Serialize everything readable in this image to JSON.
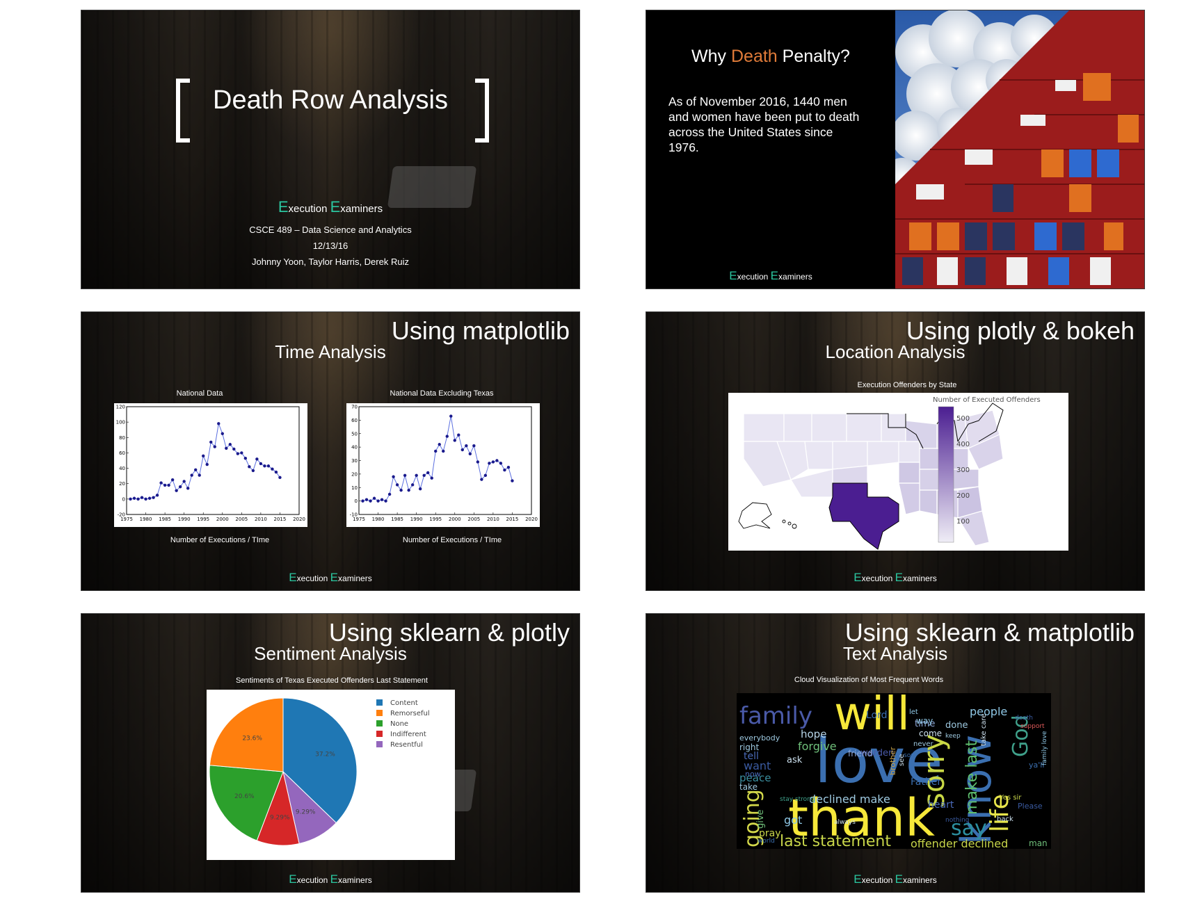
{
  "brand": {
    "first_cap": "E",
    "first_rest": "xecution ",
    "second_cap": "E",
    "second_rest": "xaminers"
  },
  "slide1": {
    "title": "Death Row Analysis",
    "course": "CSCE 489 – Data Science and Analytics",
    "date": "12/13/16",
    "authors": "Johnny Yoon, Taylor Harris, Derek Ruiz"
  },
  "slide2": {
    "title_pre": "Why ",
    "title_accent": "Death",
    "title_post": " Penalty?",
    "accent_color": "#e07b39",
    "body": "As of November 2016, 1440 men and women have been put to death across the United States since 1976."
  },
  "slide3": {
    "heading": "Using matplotlib",
    "subheading": "Time Analysis",
    "charts_caption": "Number of Executions / TIme"
  },
  "slide4": {
    "heading": "Using plotly & bokeh",
    "subheading": "Location Analysis",
    "map_title": "Execution Offenders by State",
    "colorbar_title": "Number of Executed Offenders",
    "colorbar_ticks": [
      "500",
      "400",
      "300",
      "200",
      "100"
    ]
  },
  "slide5": {
    "heading": "Using sklearn & plotly",
    "subheading": "Sentiment Analysis"
  },
  "slide6": {
    "heading": "Using sklearn & matplotlib",
    "subheading": "Text Analysis",
    "cloud_title": "Cloud Visualization of Most Frequent Words",
    "words": [
      {
        "text": "will",
        "color": "#f6e83a"
      },
      {
        "text": "love",
        "color": "#3b6fb0"
      },
      {
        "text": "thank",
        "color": "#f6e83a"
      },
      {
        "text": "know",
        "color": "#3b6fb0"
      },
      {
        "text": "family",
        "color": "#4a5aa8"
      },
      {
        "text": "sorry",
        "color": "#c9d845"
      },
      {
        "text": "life",
        "color": "#e6e34a"
      },
      {
        "text": "God",
        "color": "#3fa08a"
      },
      {
        "text": "going",
        "color": "#d3d84a"
      },
      {
        "text": "say",
        "color": "#2c8fa0"
      },
      {
        "text": "last statement",
        "color": "#c8d64a"
      },
      {
        "text": "declined make",
        "color": "#9ec9e0"
      },
      {
        "text": "make last",
        "color": "#5fbf6e"
      },
      {
        "text": "offender declined",
        "color": "#c8d64a"
      },
      {
        "text": "Lord",
        "color": "#3b6fb0"
      },
      {
        "text": "people",
        "color": "#8fc8e6"
      },
      {
        "text": "hope",
        "color": "#b7d5e8"
      },
      {
        "text": "forgive",
        "color": "#6fbf7a"
      },
      {
        "text": "warden",
        "color": "#4a5aa8"
      },
      {
        "text": "friend",
        "color": "#8fa8d8"
      },
      {
        "text": "done",
        "color": "#9ec9e0"
      },
      {
        "text": "time",
        "color": "#8fa8d8"
      },
      {
        "text": "come",
        "color": "#cce0ee"
      },
      {
        "text": "heart",
        "color": "#4a6ab8"
      },
      {
        "text": "Father",
        "color": "#3b6fb0"
      },
      {
        "text": "peace",
        "color": "#3b8fa0"
      },
      {
        "text": "right",
        "color": "#9ec9e0"
      },
      {
        "text": "want",
        "color": "#3a5aa0"
      },
      {
        "text": "tell",
        "color": "#4a6ab8"
      },
      {
        "text": "ask",
        "color": "#cce0ee"
      },
      {
        "text": "now",
        "color": "#4a6ab8"
      },
      {
        "text": "got",
        "color": "#8fc8e6"
      },
      {
        "text": "give",
        "color": "#6fbf7a"
      },
      {
        "text": "pray",
        "color": "#c8d64a"
      },
      {
        "text": "way",
        "color": "#8fc8e6"
      },
      {
        "text": "never",
        "color": "#9ec9e0"
      },
      {
        "text": "everybody",
        "color": "#9ec9e0"
      },
      {
        "text": "brother",
        "color": "#c8a24a"
      },
      {
        "text": "take",
        "color": "#9ec9e0"
      },
      {
        "text": "back",
        "color": "#cce0ee"
      },
      {
        "text": "man",
        "color": "#6fbf7a"
      },
      {
        "text": "ya'll",
        "color": "#3b6fb0"
      },
      {
        "text": "Please",
        "color": "#3a5aa0"
      },
      {
        "text": "support",
        "color": "#e05a5a"
      },
      {
        "text": "death",
        "color": "#3a5aa0"
      },
      {
        "text": "stay strong",
        "color": "#3fa08a"
      },
      {
        "text": "Yes sir",
        "color": "#c8d64a"
      },
      {
        "text": "nothing",
        "color": "#3a5aa0"
      },
      {
        "text": "always",
        "color": "#cce0ee"
      },
      {
        "text": "world",
        "color": "#3b6fb0"
      },
      {
        "text": "keep",
        "color": "#9ec9e0"
      },
      {
        "text": "let",
        "color": "#8fc8e6"
      },
      {
        "text": "see",
        "color": "#cce0ee"
      },
      {
        "text": "take care",
        "color": "#cce0ee"
      },
      {
        "text": "family love",
        "color": "#8fc8e6"
      },
      {
        "text": "son",
        "color": "#3b6fb0"
      }
    ]
  },
  "chart_data": [
    {
      "type": "line",
      "title": "National Data",
      "xlabel": "Number of Executions / TIme",
      "ylabel": "",
      "x": [
        1976,
        1977,
        1978,
        1979,
        1980,
        1981,
        1982,
        1983,
        1984,
        1985,
        1986,
        1987,
        1988,
        1989,
        1990,
        1991,
        1992,
        1993,
        1994,
        1995,
        1996,
        1997,
        1998,
        1999,
        2000,
        2001,
        2002,
        2003,
        2004,
        2005,
        2006,
        2007,
        2008,
        2009,
        2010,
        2011,
        2012,
        2013,
        2014,
        2015
      ],
      "y": [
        0,
        1,
        0,
        2,
        0,
        1,
        2,
        5,
        21,
        18,
        18,
        25,
        11,
        16,
        23,
        14,
        31,
        38,
        31,
        56,
        45,
        74,
        68,
        98,
        85,
        66,
        71,
        65,
        59,
        60,
        53,
        42,
        37,
        52,
        46,
        43,
        43,
        39,
        35,
        28
      ],
      "xlim": [
        1975,
        2020
      ],
      "ylim": [
        -20,
        120
      ],
      "xticks": [
        1975,
        1980,
        1985,
        1990,
        1995,
        2000,
        2005,
        2010,
        2015,
        2020
      ],
      "yticks": [
        -20,
        0,
        20,
        40,
        60,
        80,
        100,
        120
      ],
      "grid": false
    },
    {
      "type": "line",
      "title": "National Data Excluding Texas",
      "xlabel": "Number of Executions / TIme",
      "ylabel": "",
      "x": [
        1976,
        1977,
        1978,
        1979,
        1980,
        1981,
        1982,
        1983,
        1984,
        1985,
        1986,
        1987,
        1988,
        1989,
        1990,
        1991,
        1992,
        1993,
        1994,
        1995,
        1996,
        1997,
        1998,
        1999,
        2000,
        2001,
        2002,
        2003,
        2004,
        2005,
        2006,
        2007,
        2008,
        2009,
        2010,
        2011,
        2012,
        2013,
        2014,
        2015
      ],
      "y": [
        0,
        1,
        0,
        2,
        0,
        1,
        0,
        5,
        18,
        12,
        8,
        19,
        8,
        12,
        19,
        9,
        19,
        21,
        17,
        37,
        42,
        37,
        48,
        63,
        45,
        49,
        38,
        41,
        35,
        41,
        29,
        16,
        19,
        28,
        29,
        30,
        28,
        23,
        25,
        15
      ],
      "xlim": [
        1975,
        2020
      ],
      "ylim": [
        -10,
        70
      ],
      "xticks": [
        1975,
        1980,
        1985,
        1990,
        1995,
        2000,
        2005,
        2010,
        2015,
        2020
      ],
      "yticks": [
        -10,
        0,
        10,
        20,
        30,
        40,
        50,
        60,
        70
      ],
      "grid": false
    },
    {
      "type": "pie",
      "title": "Sentiments of Texas Executed Offenders Last Statement",
      "legend_position": "right",
      "slices": [
        {
          "name": "Content",
          "value": 37.2,
          "label": "37.2%",
          "color": "#1f77b4"
        },
        {
          "name": "Resentful",
          "value": 9.29,
          "label": "9.29%",
          "color": "#9467bd"
        },
        {
          "name": "Indifferent",
          "value": 9.29,
          "label": "9.29%",
          "color": "#d62728"
        },
        {
          "name": "None",
          "value": 20.6,
          "label": "20.6%",
          "color": "#2ca02c"
        },
        {
          "name": "Remorseful",
          "value": 23.6,
          "label": "23.6%",
          "color": "#ff7f0e"
        }
      ],
      "legend": [
        "Content",
        "Remorseful",
        "None",
        "Indifferent",
        "Resentful"
      ]
    }
  ]
}
